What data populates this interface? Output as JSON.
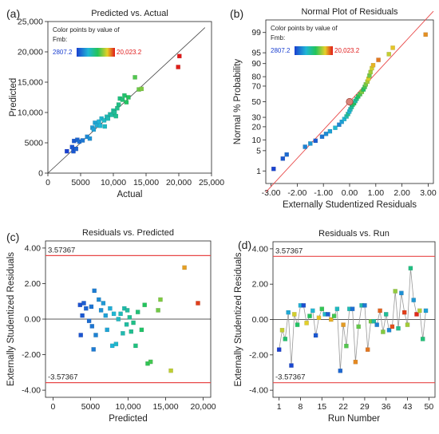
{
  "colors": {
    "fmb_low": "#1a3fd0",
    "fmb_mid": "#22c45a",
    "fmb_high": "#e01818",
    "ref_line": "#e84848",
    "fit_line": "#444444",
    "frame": "#222222"
  },
  "chart_data": [
    {
      "id": "a",
      "type": "scatter",
      "panel_label": "(a)",
      "title": "Predicted vs. Actual",
      "xlabel": "Actual",
      "ylabel": "Predicted",
      "xlim": [
        0,
        25000
      ],
      "ylim": [
        0,
        25000
      ],
      "xticks": [
        0,
        5000,
        10000,
        15000,
        20000,
        25000
      ],
      "xtick_labels": [
        "0",
        "5000",
        "10,000",
        "15,000",
        "20,000",
        "25,000"
      ],
      "yticks": [
        0,
        5000,
        10000,
        15000,
        20000,
        25000
      ],
      "ytick_labels": [
        "0",
        "5000",
        "10,000",
        "15,000",
        "20,000",
        "25,000"
      ],
      "reference_line": "y = x",
      "legend": {
        "line1": "Color points by value of",
        "line2": "Fmb:",
        "min_label": "2807.2",
        "max_label": "20,023.2",
        "position": "top-left"
      },
      "points": [
        {
          "x": 2900,
          "y": 3600
        },
        {
          "x": 3700,
          "y": 4300
        },
        {
          "x": 3900,
          "y": 3600
        },
        {
          "x": 4000,
          "y": 5300
        },
        {
          "x": 4300,
          "y": 4000
        },
        {
          "x": 4500,
          "y": 5500
        },
        {
          "x": 4800,
          "y": 5200
        },
        {
          "x": 5300,
          "y": 5400
        },
        {
          "x": 6000,
          "y": 6000
        },
        {
          "x": 6400,
          "y": 5700
        },
        {
          "x": 6800,
          "y": 7500
        },
        {
          "x": 7000,
          "y": 7200
        },
        {
          "x": 7200,
          "y": 8300
        },
        {
          "x": 7500,
          "y": 7900
        },
        {
          "x": 7800,
          "y": 8500
        },
        {
          "x": 8000,
          "y": 7800
        },
        {
          "x": 8200,
          "y": 9000
        },
        {
          "x": 8600,
          "y": 8700
        },
        {
          "x": 8700,
          "y": 7700
        },
        {
          "x": 9000,
          "y": 9300
        },
        {
          "x": 9200,
          "y": 9000
        },
        {
          "x": 9500,
          "y": 9700
        },
        {
          "x": 9800,
          "y": 9600
        },
        {
          "x": 10000,
          "y": 10300
        },
        {
          "x": 10200,
          "y": 10000
        },
        {
          "x": 10400,
          "y": 9400
        },
        {
          "x": 10600,
          "y": 10700
        },
        {
          "x": 10800,
          "y": 11300
        },
        {
          "x": 11000,
          "y": 12300
        },
        {
          "x": 11400,
          "y": 12100
        },
        {
          "x": 11700,
          "y": 12800
        },
        {
          "x": 12000,
          "y": 11700
        },
        {
          "x": 12300,
          "y": 12500
        },
        {
          "x": 13300,
          "y": 15800
        },
        {
          "x": 13900,
          "y": 13800
        },
        {
          "x": 14300,
          "y": 13900
        },
        {
          "x": 19900,
          "y": 17500
        },
        {
          "x": 20100,
          "y": 19300
        }
      ]
    },
    {
      "id": "b",
      "type": "scatter",
      "panel_label": "(b)",
      "title": "Normal Plot of Residuals",
      "xlabel": "Externally Studentized Residuals",
      "ylabel": "Normal % Probability",
      "xlim": [
        -3.2,
        3.2
      ],
      "xticks": [
        -3,
        -2,
        -1,
        0,
        1,
        2,
        3
      ],
      "xtick_labels": [
        "-3.00",
        "-2.00",
        "-1.00",
        "0.00",
        "1.00",
        "2.00",
        "3.00"
      ],
      "y_scale": "normal-probability",
      "ylim": [
        0.3,
        99.7
      ],
      "yticks": [
        1,
        5,
        10,
        20,
        30,
        50,
        70,
        80,
        90,
        95,
        99
      ],
      "ytick_labels": [
        "1",
        "5",
        "10",
        "20",
        "30",
        "50",
        "70",
        "80",
        "90",
        "95",
        "99"
      ],
      "legend": {
        "line1": "Color points by value of",
        "line2": "Fmb:",
        "min_label": "2807.2",
        "max_label": "20,023.2",
        "position": "top-left"
      },
      "points": [
        {
          "x": -2.9,
          "y": 1.2
        },
        {
          "x": -2.55,
          "y": 2.8
        },
        {
          "x": -2.4,
          "y": 3.8
        },
        {
          "x": -1.7,
          "y": 6.5
        },
        {
          "x": -1.5,
          "y": 8
        },
        {
          "x": -1.3,
          "y": 9.5
        },
        {
          "x": -1.05,
          "y": 12
        },
        {
          "x": -0.9,
          "y": 14
        },
        {
          "x": -0.75,
          "y": 16
        },
        {
          "x": -0.55,
          "y": 19
        },
        {
          "x": -0.4,
          "y": 22
        },
        {
          "x": -0.3,
          "y": 25
        },
        {
          "x": -0.2,
          "y": 28
        },
        {
          "x": -0.12,
          "y": 31
        },
        {
          "x": -0.06,
          "y": 34
        },
        {
          "x": -0.01,
          "y": 37
        },
        {
          "x": 0.03,
          "y": 40
        },
        {
          "x": 0.08,
          "y": 43
        },
        {
          "x": 0.12,
          "y": 46
        },
        {
          "x": 0.17,
          "y": 48
        },
        {
          "x": 0.22,
          "y": 51
        },
        {
          "x": 0.27,
          "y": 54
        },
        {
          "x": 0.33,
          "y": 57
        },
        {
          "x": 0.4,
          "y": 60
        },
        {
          "x": 0.47,
          "y": 63
        },
        {
          "x": 0.53,
          "y": 66
        },
        {
          "x": 0.58,
          "y": 69
        },
        {
          "x": 0.62,
          "y": 72
        },
        {
          "x": 0.68,
          "y": 75
        },
        {
          "x": 0.72,
          "y": 78
        },
        {
          "x": 0.76,
          "y": 81
        },
        {
          "x": 0.8,
          "y": 84
        },
        {
          "x": 0.85,
          "y": 87
        },
        {
          "x": 0.9,
          "y": 89
        },
        {
          "x": 1.1,
          "y": 92
        },
        {
          "x": 1.5,
          "y": 94.5
        },
        {
          "x": 1.65,
          "y": 96.5
        },
        {
          "x": 2.9,
          "y": 98.8
        }
      ],
      "highlight_point": {
        "x": 0.0,
        "y": 50
      }
    },
    {
      "id": "c",
      "type": "scatter",
      "panel_label": "(c)",
      "title": "Residuals vs. Predicted",
      "xlabel": "Predicted",
      "ylabel": "Externally Studentized Residuals",
      "xlim": [
        -1000,
        21000
      ],
      "xticks": [
        0,
        5000,
        10000,
        15000,
        20000
      ],
      "xtick_labels": [
        "0",
        "5000",
        "10,000",
        "15,000",
        "20,000"
      ],
      "ylim": [
        -4.4,
        4.4
      ],
      "yticks": [
        -4,
        -2,
        0,
        2,
        4
      ],
      "ytick_labels": [
        "-4.00",
        "-2.00",
        "0.00",
        "2.00",
        "4.00"
      ],
      "limit_lines": [
        3.57367,
        -3.57367
      ],
      "limit_labels": [
        "3.57367",
        "-3.57367"
      ],
      "points": [
        {
          "x": 3600,
          "y": 0.8
        },
        {
          "x": 3700,
          "y": -0.9
        },
        {
          "x": 3900,
          "y": 0.2
        },
        {
          "x": 4100,
          "y": 0.9
        },
        {
          "x": 4400,
          "y": 0.6
        },
        {
          "x": 4800,
          "y": -0.1
        },
        {
          "x": 5100,
          "y": 0.7
        },
        {
          "x": 5200,
          "y": -0.4
        },
        {
          "x": 5400,
          "y": -1.7
        },
        {
          "x": 5500,
          "y": 1.6
        },
        {
          "x": 5700,
          "y": -0.9
        },
        {
          "x": 6100,
          "y": 1.1
        },
        {
          "x": 6400,
          "y": 0.5
        },
        {
          "x": 6700,
          "y": 0.9
        },
        {
          "x": 7000,
          "y": 0.2
        },
        {
          "x": 7200,
          "y": -0.6
        },
        {
          "x": 7600,
          "y": 0.6
        },
        {
          "x": 7900,
          "y": -1.5
        },
        {
          "x": 8100,
          "y": 0.3
        },
        {
          "x": 8400,
          "y": -1.4
        },
        {
          "x": 8700,
          "y": 0.0
        },
        {
          "x": 9000,
          "y": 0.3
        },
        {
          "x": 9300,
          "y": -0.8
        },
        {
          "x": 9500,
          "y": 0.6
        },
        {
          "x": 9800,
          "y": -0.3
        },
        {
          "x": 9900,
          "y": 0.5
        },
        {
          "x": 10200,
          "y": 0.1
        },
        {
          "x": 10400,
          "y": -0.7
        },
        {
          "x": 10700,
          "y": -0.2
        },
        {
          "x": 11000,
          "y": -1.5
        },
        {
          "x": 11300,
          "y": 0.4
        },
        {
          "x": 11800,
          "y": -0.6
        },
        {
          "x": 12200,
          "y": 0.8
        },
        {
          "x": 12600,
          "y": -2.5
        },
        {
          "x": 13000,
          "y": -2.4
        },
        {
          "x": 14000,
          "y": 0.5
        },
        {
          "x": 14300,
          "y": 1.1
        },
        {
          "x": 15700,
          "y": -2.9
        },
        {
          "x": 17500,
          "y": 2.9
        },
        {
          "x": 19300,
          "y": 0.9
        }
      ]
    },
    {
      "id": "d",
      "type": "line",
      "panel_label": "(d)",
      "title": "Residuals vs. Run",
      "xlabel": "Run Number",
      "ylabel": "Externally Studentized Residuals",
      "xlim": [
        -1,
        52
      ],
      "xticks": [
        1,
        8,
        15,
        22,
        29,
        36,
        43,
        50
      ],
      "xtick_labels": [
        "1",
        "8",
        "15",
        "22",
        "29",
        "36",
        "43",
        "50"
      ],
      "ylim": [
        -4.4,
        4.4
      ],
      "yticks": [
        -4,
        -2,
        0,
        2,
        4
      ],
      "ytick_labels": [
        "-4.00",
        "-2.00",
        "0.00",
        "2.00",
        "4.00"
      ],
      "limit_lines": [
        3.57367,
        -3.57367
      ],
      "limit_labels": [
        "3.57367",
        "-3.57367"
      ],
      "points": [
        {
          "x": 1,
          "y": -1.7
        },
        {
          "x": 2,
          "y": -0.6
        },
        {
          "x": 3,
          "y": -1.1
        },
        {
          "x": 4,
          "y": 0.4
        },
        {
          "x": 5,
          "y": -2.6
        },
        {
          "x": 6,
          "y": 0.3
        },
        {
          "x": 7,
          "y": -0.3
        },
        {
          "x": 8,
          "y": 0.8
        },
        {
          "x": 9,
          "y": 0.8
        },
        {
          "x": 10,
          "y": -0.2
        },
        {
          "x": 11,
          "y": 0.2
        },
        {
          "x": 12,
          "y": 0.5
        },
        {
          "x": 13,
          "y": -0.9
        },
        {
          "x": 14,
          "y": 0.1
        },
        {
          "x": 15,
          "y": 0.6
        },
        {
          "x": 16,
          "y": 0.3
        },
        {
          "x": 17,
          "y": 0.3
        },
        {
          "x": 18,
          "y": 0.0
        },
        {
          "x": 19,
          "y": 0.2
        },
        {
          "x": 20,
          "y": 0.6
        },
        {
          "x": 21,
          "y": -2.9
        },
        {
          "x": 22,
          "y": -0.3
        },
        {
          "x": 23,
          "y": -1.5
        },
        {
          "x": 24,
          "y": 0.6
        },
        {
          "x": 25,
          "y": 0.6
        },
        {
          "x": 26,
          "y": -2.4
        },
        {
          "x": 27,
          "y": -0.4
        },
        {
          "x": 28,
          "y": 0.8
        },
        {
          "x": 29,
          "y": 0.8
        },
        {
          "x": 30,
          "y": -1.7
        },
        {
          "x": 31,
          "y": -0.1
        },
        {
          "x": 32,
          "y": -0.1
        },
        {
          "x": 33,
          "y": -0.3
        },
        {
          "x": 34,
          "y": 0.5
        },
        {
          "x": 35,
          "y": -0.7
        },
        {
          "x": 36,
          "y": 0.3
        },
        {
          "x": 37,
          "y": -0.6
        },
        {
          "x": 38,
          "y": -0.4
        },
        {
          "x": 39,
          "y": 1.6
        },
        {
          "x": 40,
          "y": -0.5
        },
        {
          "x": 41,
          "y": 1.5
        },
        {
          "x": 42,
          "y": 0.4
        },
        {
          "x": 43,
          "y": -0.3
        },
        {
          "x": 44,
          "y": 2.9
        },
        {
          "x": 45,
          "y": 1.1
        },
        {
          "x": 46,
          "y": 0.3
        },
        {
          "x": 47,
          "y": 0.5
        },
        {
          "x": 48,
          "y": -1.1
        },
        {
          "x": 49,
          "y": 0.5
        }
      ]
    }
  ]
}
